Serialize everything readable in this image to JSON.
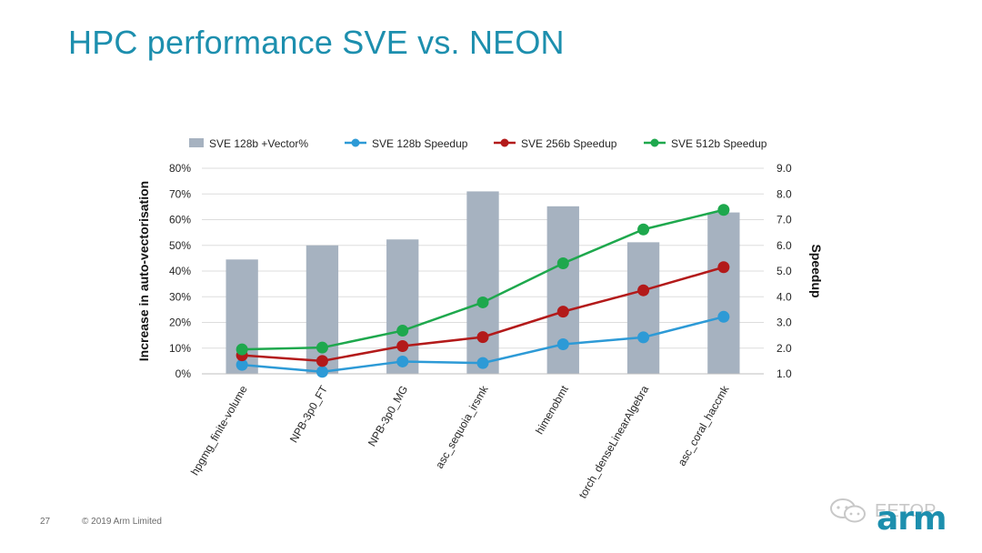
{
  "slide": {
    "title": "HPC performance SVE vs. NEON",
    "page_number": "27",
    "copyright": "© 2019 Arm Limited",
    "logo_text": "arm",
    "watermark_text": "EETOP"
  },
  "colors": {
    "bar": "#a6b2c0",
    "sve128": "#2d9ad6",
    "sve256": "#b31a1a",
    "sve512": "#1ea84d",
    "axis_text": "#262626",
    "grid": "#dddddd"
  },
  "chart_data": {
    "type": "bar",
    "title": "",
    "categories": [
      "hpgmg_finite-volume",
      "NPB-3p0_FT",
      "NPB-3p0_MG",
      "asc_sequoia_irsmk",
      "himenobmt",
      "torch_denseLinearAlgebra",
      "asc_coral_haccmk"
    ],
    "legend": [
      "SVE 128b +Vector%",
      "SVE 128b Speedup",
      "SVE 256b Speedup",
      "SVE 512b Speedup"
    ],
    "legend_position": "top",
    "ylabel": "Increase in auto-vectorisation",
    "y2label": "Speedup",
    "ylim": [
      0,
      0.8
    ],
    "y2lim": [
      1.0,
      9.0
    ],
    "yticks": [
      "0%",
      "10%",
      "20%",
      "30%",
      "40%",
      "50%",
      "60%",
      "70%",
      "80%"
    ],
    "y2ticks": [
      "1.0",
      "2.0",
      "3.0",
      "4.0",
      "5.0",
      "6.0",
      "7.0",
      "8.0",
      "9.0"
    ],
    "bars": {
      "name": "SVE 128b +Vector%",
      "values": [
        0.445,
        0.5,
        0.523,
        0.71,
        0.652,
        0.512,
        0.628
      ]
    },
    "series": [
      {
        "name": "SVE 128b Speedup",
        "values": [
          1.35,
          1.08,
          1.48,
          1.42,
          2.15,
          2.42,
          3.22
        ]
      },
      {
        "name": "SVE 256b Speedup",
        "values": [
          1.72,
          1.5,
          2.08,
          2.43,
          3.42,
          4.25,
          5.15
        ]
      },
      {
        "name": "SVE 512b Speedup",
        "values": [
          1.95,
          2.02,
          2.68,
          3.78,
          5.3,
          6.62,
          7.38
        ]
      }
    ]
  }
}
